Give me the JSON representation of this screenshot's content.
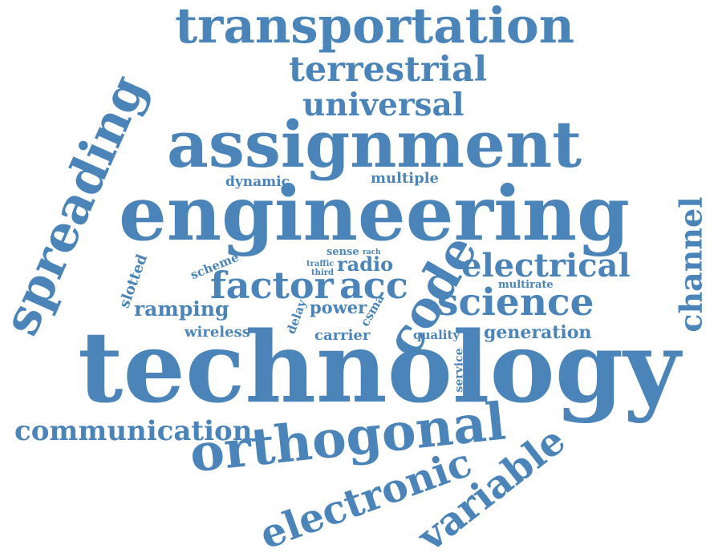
{
  "color": "#4a84b8",
  "words": {
    "technology": "technology",
    "engineering": "engineering",
    "assignment": "assignment",
    "spreading": "spreading",
    "transportation": "transportation",
    "orthogonal": "orthogonal",
    "code": "code",
    "variable": "variable",
    "electronic": "electronic",
    "channel": "channel",
    "science": "science",
    "electrical": "electrical",
    "terrestrial": "terrestrial",
    "universal": "universal",
    "communication": "communication",
    "factor": "factor",
    "acc": "acc",
    "ramping": "ramping",
    "generation": "generation",
    "radio": "radio",
    "power": "power",
    "carrier": "carrier",
    "multiple": "multiple",
    "dynamic": "dynamic",
    "wireless": "wireless",
    "slotted": "slotted",
    "scheme": "scheme",
    "csma": "csma",
    "delay": "delay",
    "quality": "quality",
    "multirate": "multirate",
    "service": "service",
    "sense": "sense",
    "rach": "rach",
    "traffic": "traffic",
    "third": "third"
  }
}
